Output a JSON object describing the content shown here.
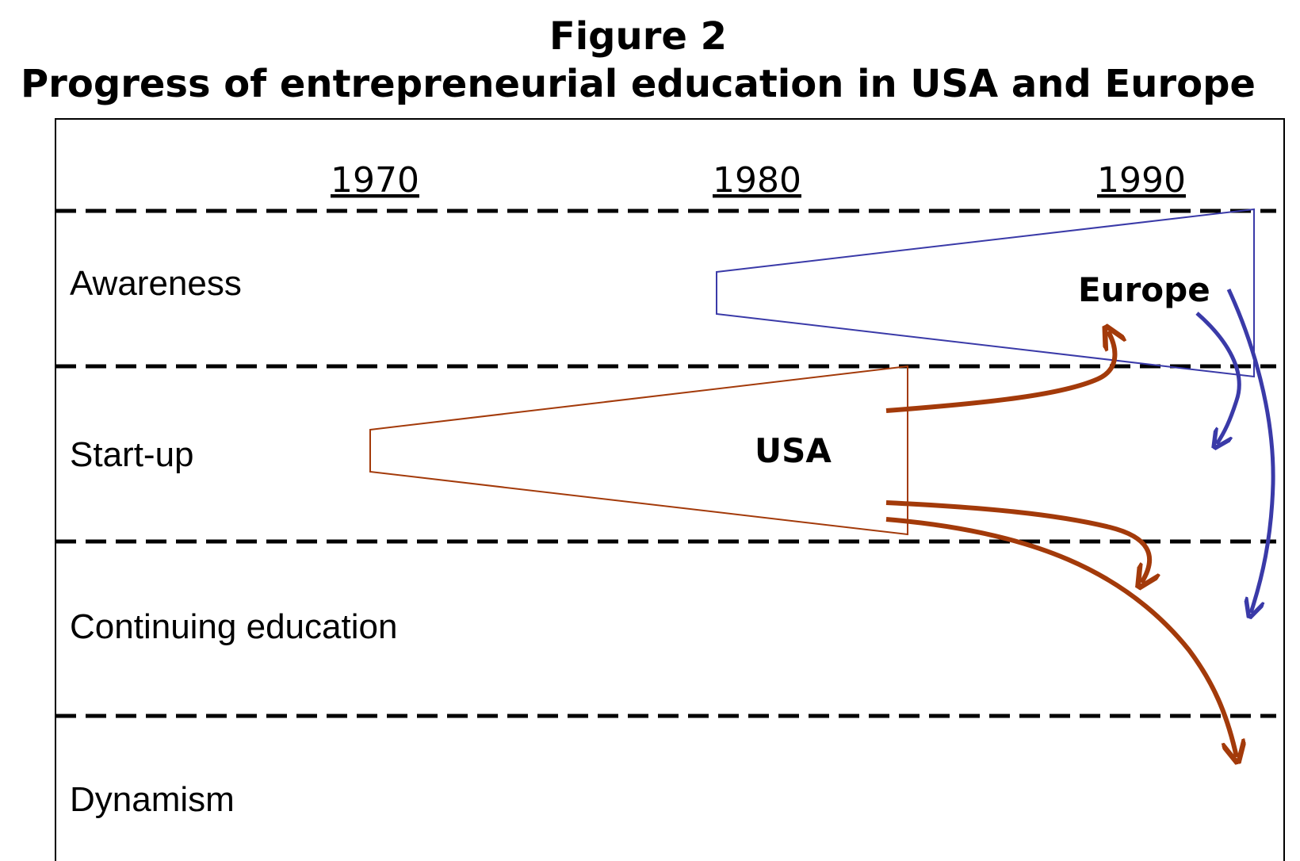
{
  "figure": {
    "number": "Figure 2",
    "title": "Progress of entrepreneurial education in USA and Europe"
  },
  "years": [
    "1970",
    "1980",
    "1990"
  ],
  "stages": [
    "Awareness",
    "Start-up",
    "Continuing education",
    "Dynamism"
  ],
  "regions": {
    "usa": {
      "label": "USA",
      "color": "#a33a0a"
    },
    "europe": {
      "label": "Europe",
      "color": "#3a3aa8"
    }
  }
}
